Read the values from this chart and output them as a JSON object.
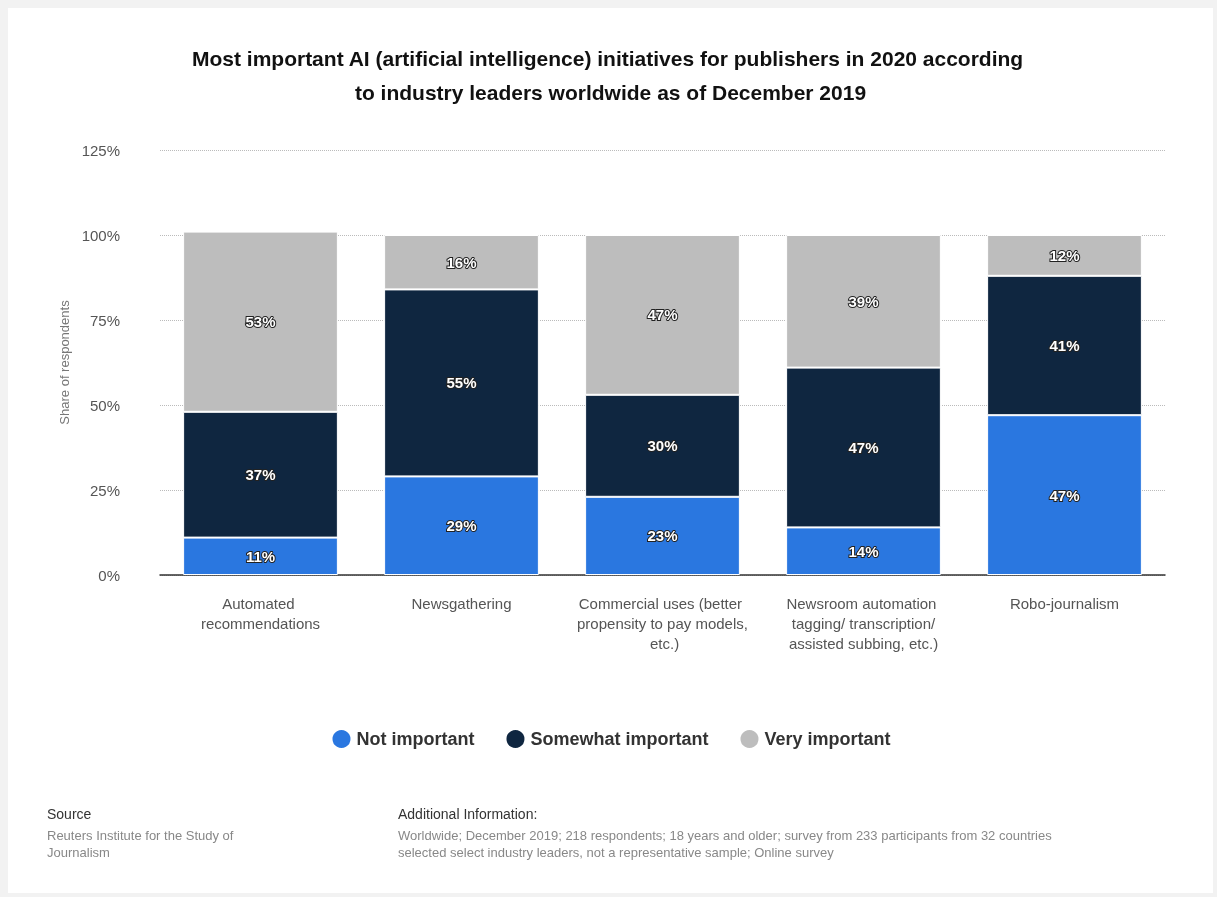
{
  "chart_data": {
    "type": "bar",
    "stacked": true,
    "title": "Most important AI (artificial intelligence) initiatives for publishers in 2020 according to industry leaders worldwide as of December 2019",
    "ylabel": "Share of respondents",
    "categories": [
      "Automated recommendations",
      "Newsgathering",
      "Commercial uses (better propensity to pay models, etc.)",
      "Newsroom automation tagging/ transcription/assisted subbing, etc.)",
      "Robo-journalism"
    ],
    "series": [
      {
        "name": "Not important",
        "color": "#2a77e0",
        "values": [
          11,
          29,
          23,
          14,
          47
        ],
        "value_labels": [
          "11%",
          "29%",
          "23%",
          "14%",
          "47%"
        ]
      },
      {
        "name": "Somewhat important",
        "color": "#0f2640",
        "values": [
          37,
          55,
          30,
          47,
          41
        ],
        "value_labels": [
          "37%",
          "55%",
          "30%",
          "47%",
          "41%"
        ]
      },
      {
        "name": "Very important",
        "color": "#bdbdbd",
        "values": [
          53,
          16,
          47,
          39,
          12
        ],
        "value_labels": [
          "53%",
          "16%",
          "47%",
          "39%",
          "12%"
        ]
      }
    ],
    "ylim": [
      0,
      125
    ],
    "yticks": [
      {
        "value": 0,
        "label": "0%"
      },
      {
        "value": 25,
        "label": "25%"
      },
      {
        "value": 50,
        "label": "50%"
      },
      {
        "value": 75,
        "label": "75%"
      },
      {
        "value": 100,
        "label": "100%"
      },
      {
        "value": 125,
        "label": "125%"
      }
    ],
    "grid": "y",
    "legend": "bottom",
    "annotations": [
      "Source",
      "Reuters Institute for the Study of Journalism",
      "Additional Information:",
      "Worldwide; December 2019; 218 respondents; 18 years and older; survey from 233 participants from 32 countries selected select industry leaders, not a representative sample; Online survey"
    ]
  }
}
